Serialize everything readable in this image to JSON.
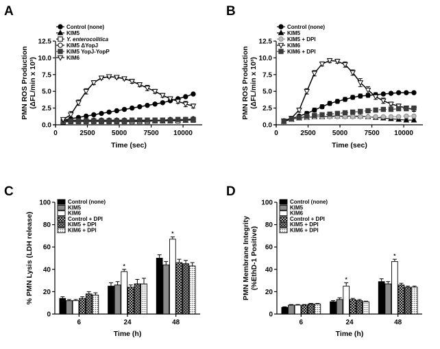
{
  "panel_letters": [
    "A",
    "B",
    "C",
    "D"
  ],
  "colors": {
    "black": "#000000",
    "dark_gray": "#3a3a3a",
    "mid_gray": "#8a8a8a",
    "light_gray": "#bdbdbd",
    "white": "#ffffff"
  },
  "chart_data": [
    {
      "id": "A",
      "type": "line",
      "title": "",
      "xlabel": "Time (sec)",
      "ylabel_line1": "PMN ROS Production",
      "ylabel_line2": "(ΔFL/min x 10³)",
      "xlim": [
        0,
        11500
      ],
      "ylim": [
        0,
        12.5
      ],
      "xticks": [
        0,
        2500,
        5000,
        7500,
        10000
      ],
      "xtick_labels": [
        "0",
        "2500",
        "5000",
        "7500",
        "10000"
      ],
      "yticks": [
        0,
        2.5,
        5,
        7.5,
        10,
        12.5
      ],
      "ytick_labels": [
        "0.0",
        "2.5",
        "5.0",
        "7.5",
        "10.0",
        "12.5"
      ],
      "legend_position": "top-left",
      "series": [
        {
          "name": "Control (none)",
          "marker": "circle",
          "fill": "#000000",
          "line": "#000000",
          "line_width": 1.5,
          "x": [
            600,
            1200,
            1800,
            2400,
            3000,
            3600,
            4200,
            4800,
            5400,
            6000,
            6600,
            7200,
            7800,
            8400,
            9000,
            9600,
            10200,
            10800
          ],
          "y": [
            0.7,
            0.9,
            1.1,
            1.3,
            1.5,
            1.7,
            1.9,
            2.1,
            2.3,
            2.5,
            2.7,
            2.9,
            3.1,
            3.3,
            3.6,
            3.9,
            4.2,
            4.6
          ],
          "err": [
            0.05,
            0.05,
            0.05,
            0.05,
            0.05,
            0.05,
            0.05,
            0.05,
            0.05,
            0.05,
            0.05,
            0.05,
            0.05,
            0.05,
            0.05,
            0.05,
            0.05,
            0.05
          ]
        },
        {
          "name": "KIM5",
          "marker": "triangle-up",
          "fill": "#000000",
          "line": "#000000",
          "line_width": 1.2,
          "x": [
            600,
            1200,
            1800,
            2400,
            3000,
            3600,
            4200,
            4800,
            5400,
            6000,
            6600,
            7200,
            7800,
            8400,
            9000,
            9600,
            10200,
            10800
          ],
          "y": [
            0.5,
            0.6,
            0.6,
            0.6,
            0.6,
            0.6,
            0.6,
            0.6,
            0.6,
            0.6,
            0.6,
            0.6,
            0.6,
            0.6,
            0.6,
            0.7,
            0.7,
            0.8
          ],
          "err": [
            0.1,
            0.1,
            0.1,
            0.1,
            0.1,
            0.1,
            0.1,
            0.1,
            0.1,
            0.1,
            0.1,
            0.1,
            0.1,
            0.1,
            0.1,
            0.1,
            0.1,
            0.1
          ]
        },
        {
          "name": "Y. enterocolitica",
          "italic": true,
          "marker": "square",
          "fill": "#ffffff",
          "line": "#000000",
          "line_width": 1.2,
          "x": [
            600,
            1200,
            1800,
            2400,
            3000,
            3600,
            4200,
            4800,
            5400,
            6000,
            6600,
            7200,
            7800,
            8400,
            9000,
            9600,
            10200,
            10800
          ],
          "y": [
            0.4,
            0.5,
            0.5,
            0.5,
            0.5,
            0.5,
            0.5,
            0.5,
            0.5,
            0.5,
            0.5,
            0.5,
            0.6,
            0.6,
            0.6,
            0.6,
            0.7,
            0.7
          ],
          "err": [
            0.1,
            0.1,
            0.1,
            0.1,
            0.1,
            0.1,
            0.1,
            0.1,
            0.1,
            0.1,
            0.1,
            0.1,
            0.1,
            0.1,
            0.1,
            0.1,
            0.1,
            0.1
          ]
        },
        {
          "name": "KIM5 ΔYopJ",
          "marker": "circle",
          "fill": "#ffffff",
          "line": "#000000",
          "line_width": 1.2,
          "x": [
            600,
            1200,
            1800,
            2400,
            3000,
            3600,
            4200,
            4800,
            5400,
            6000,
            6600,
            7200,
            7800,
            8400,
            9000,
            9600,
            10200,
            10800
          ],
          "y": [
            0.6,
            0.7,
            0.7,
            0.7,
            0.7,
            0.7,
            0.7,
            0.7,
            0.7,
            0.7,
            0.7,
            0.7,
            0.7,
            0.7,
            0.8,
            0.8,
            0.8,
            0.9
          ],
          "err": [
            0.1,
            0.1,
            0.1,
            0.1,
            0.1,
            0.1,
            0.1,
            0.1,
            0.1,
            0.1,
            0.1,
            0.1,
            0.1,
            0.1,
            0.1,
            0.1,
            0.1,
            0.1
          ]
        },
        {
          "name": "KIM5 YopJ-YopP",
          "marker": "square",
          "fill": "#3a3a3a",
          "line": "#3a3a3a",
          "line_width": 1.2,
          "x": [
            600,
            1200,
            1800,
            2400,
            3000,
            3600,
            4200,
            4800,
            5400,
            6000,
            6600,
            7200,
            7800,
            8400,
            9000,
            9600,
            10200,
            10800
          ],
          "y": [
            0.5,
            0.6,
            0.6,
            0.6,
            0.6,
            0.6,
            0.6,
            0.6,
            0.6,
            0.7,
            0.7,
            0.7,
            0.7,
            0.7,
            0.7,
            0.8,
            0.8,
            0.8
          ],
          "err": [
            0.1,
            0.1,
            0.1,
            0.1,
            0.1,
            0.1,
            0.1,
            0.1,
            0.1,
            0.1,
            0.1,
            0.1,
            0.1,
            0.1,
            0.1,
            0.1,
            0.1,
            0.1
          ]
        },
        {
          "name": "KIM6",
          "marker": "triangle-down",
          "fill": "#ffffff",
          "line": "#000000",
          "line_width": 1.5,
          "x": [
            600,
            1200,
            1800,
            2400,
            3000,
            3600,
            4200,
            4800,
            5400,
            6000,
            6600,
            7200,
            7800,
            8400,
            9000,
            9600,
            10200,
            10800
          ],
          "y": [
            0.8,
            1.5,
            3.3,
            5.0,
            6.3,
            7.0,
            7.2,
            7.1,
            6.9,
            6.5,
            6.0,
            5.5,
            5.0,
            4.4,
            3.9,
            3.5,
            3.1,
            2.8
          ],
          "err": [
            0.1,
            0.5,
            0.4,
            0.4,
            0.3,
            0.2,
            0.2,
            0.2,
            0.2,
            0.3,
            0.3,
            0.4,
            0.3,
            0.3,
            0.3,
            0.3,
            0.4,
            0.3
          ]
        }
      ]
    },
    {
      "id": "B",
      "type": "line",
      "title": "",
      "xlabel": "Time (sec)",
      "ylabel_line1": "PMN ROS Production",
      "ylabel_line2": "(ΔFL/min x 10³)",
      "xlim": [
        0,
        11500
      ],
      "ylim": [
        0,
        12.5
      ],
      "xticks": [
        0,
        2500,
        5000,
        7500,
        10000
      ],
      "xtick_labels": [
        "0",
        "2500",
        "5000",
        "7500",
        "10000"
      ],
      "yticks": [
        0,
        2.5,
        5,
        7.5,
        10,
        12.5
      ],
      "ytick_labels": [
        "0.0",
        "2.5",
        "5.0",
        "7.5",
        "10.0",
        "12.5"
      ],
      "legend_position": "top-left",
      "series": [
        {
          "name": "Control (none)",
          "marker": "circle",
          "fill": "#000000",
          "line": "#000000",
          "line_width": 1.5,
          "x": [
            600,
            1200,
            1800,
            2400,
            3000,
            3600,
            4200,
            4800,
            5400,
            6000,
            6600,
            7200,
            7800,
            8400,
            9000,
            9600,
            10200,
            10800
          ],
          "y": [
            0.6,
            0.9,
            1.3,
            1.7,
            2.2,
            2.7,
            3.2,
            3.5,
            3.8,
            4.1,
            4.3,
            4.4,
            4.5,
            4.6,
            4.7,
            4.8,
            4.8,
            4.8
          ],
          "err": [
            0.1,
            0.1,
            0.2,
            0.3,
            0.3,
            0.3,
            0.3,
            0.3,
            0.3,
            0.3,
            0.3,
            0.3,
            0.3,
            0.2,
            0.2,
            0.2,
            0.2,
            0.1
          ]
        },
        {
          "name": "KIM5",
          "marker": "triangle-up",
          "fill": "#000000",
          "line": "#000000",
          "line_width": 1.2,
          "x": [
            600,
            1200,
            1800,
            2400,
            3000,
            3600,
            4200,
            4800,
            5400,
            6000,
            6600,
            7200,
            7800,
            8400,
            9000,
            9600,
            10200,
            10800
          ],
          "y": [
            0.5,
            0.8,
            1.0,
            1.1,
            1.2,
            1.2,
            1.3,
            1.3,
            1.3,
            1.3,
            1.3,
            1.2,
            1.1,
            1.0,
            0.9,
            0.8,
            0.7,
            0.7
          ],
          "err": [
            0.1,
            0.1,
            0.2,
            0.2,
            0.2,
            0.2,
            0.2,
            0.2,
            0.2,
            0.2,
            0.2,
            0.2,
            0.2,
            0.2,
            0.2,
            0.2,
            0.2,
            0.2
          ]
        },
        {
          "name": "KIM5 + DPI",
          "marker": "circle",
          "fill": "#bdbdbd",
          "line": "#8a8a8a",
          "line_width": 1.2,
          "dash": "4,3",
          "x": [
            600,
            1200,
            1800,
            2400,
            3000,
            3600,
            4200,
            4800,
            5400,
            6000,
            6600,
            7200,
            7800,
            8400,
            9000,
            9600,
            10200,
            10800
          ],
          "y": [
            0.5,
            0.8,
            1.0,
            1.1,
            1.2,
            1.2,
            1.2,
            1.2,
            1.2,
            1.2,
            1.2,
            1.2,
            1.2,
            1.2,
            1.2,
            1.2,
            1.3,
            1.3
          ],
          "err": [
            0.1,
            0.1,
            0.2,
            0.2,
            0.2,
            0.2,
            0.2,
            0.2,
            0.2,
            0.2,
            0.2,
            0.2,
            0.2,
            0.2,
            0.2,
            0.2,
            0.2,
            0.2
          ]
        },
        {
          "name": "KIM6",
          "marker": "triangle-down",
          "fill": "#ffffff",
          "line": "#000000",
          "line_width": 1.5,
          "x": [
            600,
            1200,
            1800,
            2400,
            3000,
            3600,
            4200,
            4800,
            5400,
            6000,
            6600,
            7200,
            7800,
            8400,
            9000,
            9600,
            10200,
            10800
          ],
          "y": [
            0.6,
            1.0,
            2.2,
            5.0,
            7.7,
            9.1,
            9.6,
            9.5,
            9.0,
            7.8,
            6.3,
            5.2,
            4.2,
            3.6,
            3.1,
            2.8,
            2.5,
            2.3
          ],
          "err": [
            0.1,
            0.2,
            0.3,
            0.4,
            0.4,
            0.3,
            0.3,
            0.3,
            0.4,
            0.4,
            0.6,
            0.5,
            0.4,
            0.4,
            0.3,
            0.3,
            0.3,
            0.3
          ]
        },
        {
          "name": "KIM6 + DPI",
          "marker": "square",
          "fill": "#3a3a3a",
          "line": "#3a3a3a",
          "line_width": 1.2,
          "dash": "4,3",
          "x": [
            600,
            1200,
            1800,
            2400,
            3000,
            3600,
            4200,
            4800,
            5400,
            6000,
            6600,
            7200,
            7800,
            8400,
            9000,
            9600,
            10200,
            10800
          ],
          "y": [
            0.5,
            0.9,
            1.1,
            1.3,
            1.4,
            1.5,
            1.6,
            1.7,
            1.8,
            1.9,
            2.0,
            2.1,
            2.2,
            2.3,
            2.3,
            2.4,
            2.4,
            2.5
          ],
          "err": [
            0.1,
            0.1,
            0.2,
            0.2,
            0.2,
            0.2,
            0.2,
            0.2,
            0.2,
            0.2,
            0.2,
            0.2,
            0.2,
            0.2,
            0.2,
            0.2,
            0.2,
            0.2
          ]
        }
      ]
    },
    {
      "id": "C",
      "type": "bar",
      "title": "",
      "xlabel": "Time (h)",
      "ylabel_line1": "% PMN Lysis (LDH release)",
      "ylabel_line2": "",
      "categories": [
        "6",
        "24",
        "48"
      ],
      "ylim": [
        0,
        100
      ],
      "yticks": [
        0,
        20,
        40,
        60,
        80,
        100
      ],
      "ytick_labels": [
        "0",
        "20",
        "40",
        "60",
        "80",
        "100"
      ],
      "legend_position": "top-left",
      "significance": [
        {
          "category": "24",
          "series": "KIM6",
          "label": "*"
        },
        {
          "category": "48",
          "series": "KIM6",
          "label": "*"
        }
      ],
      "series": [
        {
          "name": "Control (none)",
          "pattern": "solid-black",
          "values": [
            14,
            25,
            50
          ],
          "err": [
            1.5,
            3,
            3
          ]
        },
        {
          "name": "KIM5",
          "pattern": "solid-gray",
          "values": [
            12,
            26,
            44
          ],
          "err": [
            1,
            3,
            3
          ]
        },
        {
          "name": "KIM6",
          "pattern": "white",
          "values": [
            12,
            38,
            67
          ],
          "err": [
            1,
            2,
            2
          ]
        },
        {
          "name": "Control + DPI",
          "pattern": "cross-black",
          "values": [
            14,
            24,
            46
          ],
          "err": [
            1.5,
            2,
            3
          ]
        },
        {
          "name": "KIM5 + DPI",
          "pattern": "check-dark",
          "values": [
            18,
            27,
            45
          ],
          "err": [
            2,
            4,
            3
          ]
        },
        {
          "name": "KIM6 + DPI",
          "pattern": "dots",
          "values": [
            17,
            27,
            43
          ],
          "err": [
            2,
            5,
            3
          ]
        }
      ]
    },
    {
      "id": "D",
      "type": "bar",
      "title": "",
      "xlabel": "Time (h)",
      "ylabel_line1": "PMN Membrane Integrity",
      "ylabel_line2": "(%EthD-1 Positive)",
      "categories": [
        "6",
        "24",
        "48"
      ],
      "ylim": [
        0,
        100
      ],
      "yticks": [
        0,
        20,
        40,
        60,
        80,
        100
      ],
      "ytick_labels": [
        "0",
        "20",
        "40",
        "60",
        "80",
        "100"
      ],
      "legend_position": "top-left",
      "significance": [
        {
          "category": "24",
          "series": "KIM6",
          "label": "*"
        },
        {
          "category": "48",
          "series": "KIM6",
          "label": "*"
        }
      ],
      "series": [
        {
          "name": "Control (none)",
          "pattern": "solid-black",
          "values": [
            6,
            11,
            29
          ],
          "err": [
            0.5,
            1,
            2.5
          ]
        },
        {
          "name": "KIM5",
          "pattern": "solid-gray",
          "values": [
            8,
            13,
            27
          ],
          "err": [
            0.5,
            1.5,
            2
          ]
        },
        {
          "name": "KIM6",
          "pattern": "white",
          "values": [
            8,
            25,
            47
          ],
          "err": [
            0.5,
            3,
            2
          ]
        },
        {
          "name": "Control + DPI",
          "pattern": "cross-black",
          "values": [
            8,
            13,
            26
          ],
          "err": [
            0.5,
            1,
            1.5
          ]
        },
        {
          "name": "KIM5 + DPI",
          "pattern": "check-dark",
          "values": [
            9,
            12,
            24
          ],
          "err": [
            0.5,
            1,
            1
          ]
        },
        {
          "name": "KIM6 + DPI",
          "pattern": "dots",
          "values": [
            9,
            11,
            24
          ],
          "err": [
            0.5,
            0.5,
            1
          ]
        }
      ]
    }
  ]
}
